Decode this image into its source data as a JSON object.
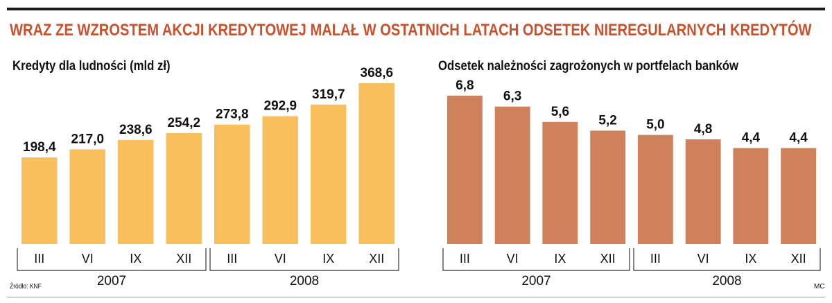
{
  "headline": "WRAZ ZE WZROSTEM AKCJI KREDYTOWEJ MALAŁ W OSTATNICH LATACH ODSETEK NIEREGULARNYCH KREDYTÓW",
  "source": "Źródło: KNF",
  "credit": "MC",
  "colors": {
    "headline": "#c8512e",
    "left_bars": "#f8bf5c",
    "right_bars": "#cf815c"
  },
  "chart_data": [
    {
      "type": "bar",
      "title": "Kredyty dla ludności (mld zł)",
      "categories": [
        "III",
        "VI",
        "IX",
        "XII",
        "III",
        "VI",
        "IX",
        "XII"
      ],
      "groups": [
        {
          "label": "2007",
          "categories": [
            "III",
            "VI",
            "IX",
            "XII"
          ]
        },
        {
          "label": "2008",
          "categories": [
            "III",
            "VI",
            "IX",
            "XII"
          ]
        }
      ],
      "values": [
        198.4,
        217.0,
        238.6,
        254.2,
        273.8,
        292.9,
        319.7,
        368.6
      ],
      "value_labels": [
        "198,4",
        "217,0",
        "238,6",
        "254,2",
        "273,8",
        "292,9",
        "319,7",
        "368,6"
      ],
      "ylim": [
        0,
        400
      ],
      "grid": false,
      "color": "#f8bf5c"
    },
    {
      "type": "bar",
      "title": "Odsetek należności zagrożonych w portfelach banków",
      "categories": [
        "III",
        "VI",
        "IX",
        "XII",
        "III",
        "VI",
        "IX",
        "XII"
      ],
      "groups": [
        {
          "label": "2007",
          "categories": [
            "III",
            "VI",
            "IX",
            "XII"
          ]
        },
        {
          "label": "2008",
          "categories": [
            "III",
            "VI",
            "IX",
            "XII"
          ]
        }
      ],
      "values": [
        6.8,
        6.3,
        5.6,
        5.2,
        5.0,
        4.8,
        4.4,
        4.4
      ],
      "value_labels": [
        "6,8",
        "6,3",
        "5,6",
        "5,2",
        "5,0",
        "4,8",
        "4,4",
        "4,4"
      ],
      "ylim": [
        0,
        7.4
      ],
      "grid": false,
      "color": "#cf815c"
    }
  ]
}
